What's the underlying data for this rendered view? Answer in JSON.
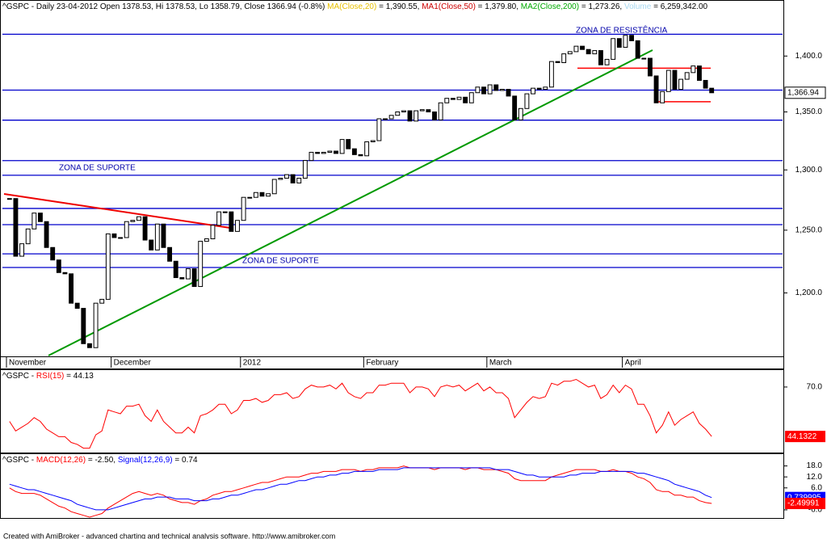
{
  "chart_data": [
    {
      "type": "candlestick",
      "title_parts": [
        {
          "text": "^GSPC - Daily 23-04-2012 Open 1378.53, Hi 1378.53, Lo 1358.79, Close 1366.94 (-0.8%) ",
          "color": "#000000"
        },
        {
          "text": "MA(Close,20)",
          "color": "#e8c000"
        },
        {
          "text": " = 1,390.55, ",
          "color": "#000000"
        },
        {
          "text": "MA1(Close,50)",
          "color": "#cc0000"
        },
        {
          "text": " = 1,379.80, ",
          "color": "#000000"
        },
        {
          "text": "MA2(Close,200)",
          "color": "#00aa00"
        },
        {
          "text": " = 1,273.26, ",
          "color": "#000000"
        },
        {
          "text": "Volume",
          "color": "#a8d8f0"
        },
        {
          "text": " = 6,259,342.00",
          "color": "#000000"
        }
      ],
      "categories": [
        "November",
        null,
        null,
        null,
        null,
        null,
        null,
        null,
        null,
        null,
        null,
        null,
        null,
        null,
        null,
        null,
        null,
        "December",
        null,
        null,
        null,
        null,
        null,
        null,
        null,
        null,
        null,
        null,
        null,
        null,
        null,
        null,
        null,
        null,
        null,
        null,
        null,
        null,
        "2012",
        null,
        null,
        null,
        null,
        null,
        null,
        null,
        null,
        null,
        null,
        null,
        null,
        null,
        null,
        null,
        null,
        null,
        null,
        null,
        "February",
        null,
        null,
        null,
        null,
        null,
        null,
        null,
        null,
        null,
        null,
        null,
        null,
        null,
        null,
        null,
        null,
        null,
        null,
        null,
        "March",
        null,
        null,
        null,
        null,
        null,
        null,
        null,
        null,
        null,
        null,
        null,
        null,
        null,
        null,
        null,
        null,
        null,
        null,
        null,
        null,
        null,
        "April",
        null,
        null,
        null,
        null,
        null,
        null,
        null,
        null,
        null,
        null,
        null,
        null,
        null,
        null
      ],
      "values": [
        1276,
        1229,
        1239,
        1251,
        1264,
        1257,
        1236,
        1226,
        1216,
        1215,
        1192,
        1188,
        1161,
        1158,
        1192,
        1195,
        1247,
        1244,
        1244,
        1257,
        1258,
        1261,
        1242,
        1234,
        1255,
        1236,
        1225,
        1212,
        1211,
        1219,
        1205,
        1241,
        1243,
        1254,
        1265,
        1265,
        1249,
        1258,
        1277,
        1277,
        1281,
        1278,
        1280,
        1292,
        1293,
        1296,
        1289,
        1293,
        1308,
        1315,
        1314,
        1315,
        1316,
        1314,
        1326,
        1318,
        1313,
        1312,
        1324,
        1325,
        1344,
        1344,
        1347,
        1350,
        1351,
        1342,
        1351,
        1352,
        1350,
        1343,
        1358,
        1362,
        1361,
        1363,
        1358,
        1367,
        1372,
        1366,
        1374,
        1369,
        1370,
        1364,
        1343,
        1353,
        1366,
        1371,
        1370,
        1372,
        1395,
        1394,
        1402,
        1404,
        1409,
        1406,
        1402,
        1405,
        1392,
        1397,
        1416,
        1408,
        1419,
        1414,
        1398,
        1398,
        1382,
        1358,
        1368,
        1387,
        1370,
        1379,
        1385,
        1391,
        1378,
        1371,
        1366.94
      ],
      "ylim": [
        1143,
        1452
      ],
      "log_scale": true,
      "yticks": [
        {
          "value": 1200,
          "label": "1,200.0"
        },
        {
          "value": 1250,
          "label": "1,250.0"
        },
        {
          "value": 1300,
          "label": "1,300.0"
        },
        {
          "value": 1350,
          "label": "1,350.0"
        },
        {
          "value": 1400,
          "label": "1,400.0"
        }
      ],
      "levels": {
        "color": "#0000cc",
        "values": [
          1420,
          1369.3,
          1342.8,
          1307.9,
          1295.5,
          1267.8,
          1254.5,
          1230.9,
          1220
        ]
      },
      "red_levels": {
        "color": "#ff0000",
        "values": [
          1389,
          1359
        ]
      },
      "annotations": [
        "ZONA DE RESISTÊNCIA",
        "ZONA DE SUPORTE",
        "ZONA DE SUPORTE"
      ],
      "last_label": {
        "value": 1366.94,
        "label": "1,366.94"
      }
    },
    {
      "type": "line",
      "title_parts": [
        {
          "text": "^GSPC - ",
          "color": "#000000"
        },
        {
          "text": "RSI(15)",
          "color": "#ff0000"
        },
        {
          "text": " = 44.13",
          "color": "#000000"
        }
      ],
      "series": [
        {
          "name": "RSI(15)",
          "color": "#ff0000",
          "values": [
            52,
            47,
            49,
            51,
            54,
            52,
            48,
            46,
            44,
            44,
            41,
            40,
            38,
            38,
            45,
            47,
            58,
            57,
            56,
            60,
            60,
            61,
            55,
            52,
            58,
            52,
            49,
            46,
            46,
            49,
            46,
            55,
            56,
            58,
            61,
            61,
            56,
            58,
            63,
            63,
            64,
            62,
            63,
            66,
            66,
            67,
            64,
            65,
            69,
            71,
            70,
            70,
            71,
            69,
            72,
            67,
            65,
            64,
            67,
            67,
            71,
            71,
            72,
            72,
            72,
            67,
            70,
            70,
            69,
            65,
            70,
            71,
            70,
            71,
            68,
            70,
            72,
            68,
            70,
            67,
            67,
            64,
            54,
            58,
            62,
            65,
            64,
            65,
            72,
            71,
            73,
            73,
            74,
            72,
            70,
            71,
            64,
            66,
            71,
            67,
            71,
            69,
            61,
            61,
            55,
            46,
            50,
            57,
            50,
            53,
            55,
            57,
            51,
            48,
            44.13
          ]
        }
      ],
      "ylim": [
        37,
        78
      ],
      "yticks": [
        {
          "value": 70,
          "label": "70.0"
        }
      ],
      "last_labels": [
        {
          "value": 44.1322,
          "label": "44.1322",
          "color": "#ff0000"
        }
      ]
    },
    {
      "type": "line",
      "title_parts": [
        {
          "text": "^GSPC - ",
          "color": "#000000"
        },
        {
          "text": "MACD(12,26)",
          "color": "#ff0000"
        },
        {
          "text": " = -2.50, ",
          "color": "#000000"
        },
        {
          "text": "Signal(12,26,9)",
          "color": "#0000ff"
        },
        {
          "text": " = 0.74",
          "color": "#000000"
        }
      ],
      "series": [
        {
          "name": "MACD(12,26)",
          "color": "#ff0000",
          "values": [
            6,
            4,
            3,
            3,
            3,
            2,
            0,
            -2,
            -4,
            -5,
            -7,
            -8,
            -9,
            -10,
            -9,
            -8,
            -5,
            -3,
            -1,
            1,
            3,
            4,
            3,
            2,
            3,
            2,
            0,
            -1,
            -2,
            -2,
            -3,
            -1,
            0,
            2,
            3,
            4,
            4,
            5,
            6,
            7,
            8,
            9,
            9,
            10,
            11,
            12,
            12,
            12,
            13,
            14,
            14,
            15,
            15,
            15,
            16,
            16,
            16,
            15,
            16,
            16,
            17,
            17,
            17,
            17,
            18,
            17,
            17,
            17,
            17,
            16,
            17,
            17,
            17,
            17,
            16,
            17,
            17,
            16,
            16,
            16,
            15,
            14,
            11,
            10,
            10,
            10,
            10,
            10,
            12,
            13,
            14,
            15,
            16,
            16,
            16,
            16,
            15,
            15,
            16,
            15,
            15,
            14,
            12,
            11,
            9,
            5,
            4,
            4,
            2,
            2,
            1,
            1,
            -1,
            -2,
            -2.5
          ]
        },
        {
          "name": "Signal(12,26,9)",
          "color": "#0000ff",
          "values": [
            8,
            7,
            6,
            5,
            5,
            4,
            3,
            2,
            1,
            0,
            -1,
            -3,
            -4,
            -5,
            -6,
            -6,
            -6,
            -5,
            -4,
            -3,
            -2,
            -1,
            0,
            0,
            1,
            1,
            1,
            0,
            0,
            0,
            -1,
            -1,
            -1,
            0,
            0,
            1,
            2,
            2,
            3,
            4,
            5,
            5,
            6,
            7,
            8,
            8,
            9,
            10,
            10,
            11,
            12,
            12,
            13,
            13,
            14,
            14,
            15,
            15,
            15,
            15,
            16,
            16,
            16,
            16,
            17,
            17,
            17,
            17,
            17,
            17,
            17,
            17,
            17,
            17,
            17,
            17,
            17,
            17,
            17,
            16,
            16,
            16,
            15,
            14,
            13,
            13,
            12,
            12,
            12,
            12,
            12,
            13,
            13,
            14,
            14,
            14,
            15,
            15,
            15,
            15,
            15,
            15,
            14,
            14,
            13,
            12,
            11,
            10,
            8,
            7,
            6,
            5,
            4,
            2,
            0.74
          ]
        }
      ],
      "ylim": [
        -10,
        24
      ],
      "yticks": [
        {
          "value": 18,
          "label": "18.0"
        },
        {
          "value": 12,
          "label": "12.0"
        },
        {
          "value": 6,
          "label": "6.0"
        },
        {
          "value": -6,
          "label": "-6.0"
        }
      ],
      "last_labels": [
        {
          "value": 0.739995,
          "label": "0.739995",
          "color": "#0000ff"
        },
        {
          "value": -2.49991,
          "label": "-2.49991",
          "color": "#ff0000"
        }
      ]
    }
  ],
  "footer": "Created with AmiBroker - advanced charting and technical analysis software. http://www.amibroker.com"
}
